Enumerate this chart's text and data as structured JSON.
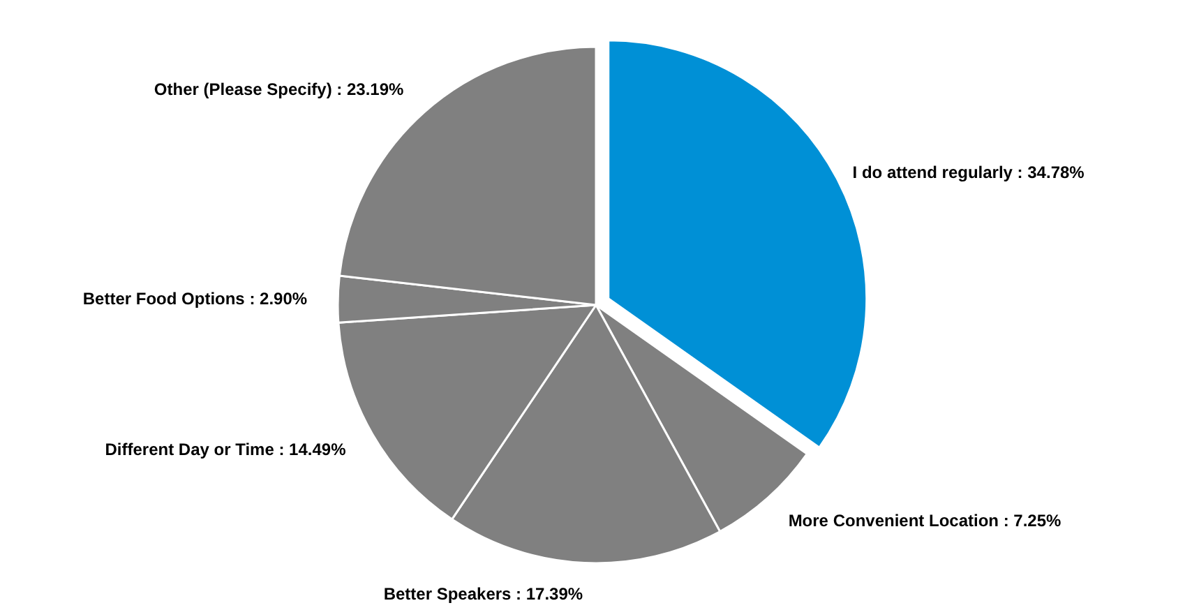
{
  "chart_data": {
    "type": "pie",
    "categories": [
      "I do attend regularly",
      "More Convenient Location",
      "Better Speakers",
      "Different Day or Time",
      "Better Food Options",
      "Other (Please Specify)"
    ],
    "values": [
      34.78,
      7.25,
      17.39,
      14.49,
      2.9,
      23.19
    ],
    "value_labels": [
      "34.78%",
      "7.25%",
      "17.39%",
      "14.49%",
      "2.90%",
      "23.19%"
    ],
    "colors": [
      "#0090d6",
      "#808080",
      "#808080",
      "#808080",
      "#808080",
      "#808080"
    ]
  }
}
